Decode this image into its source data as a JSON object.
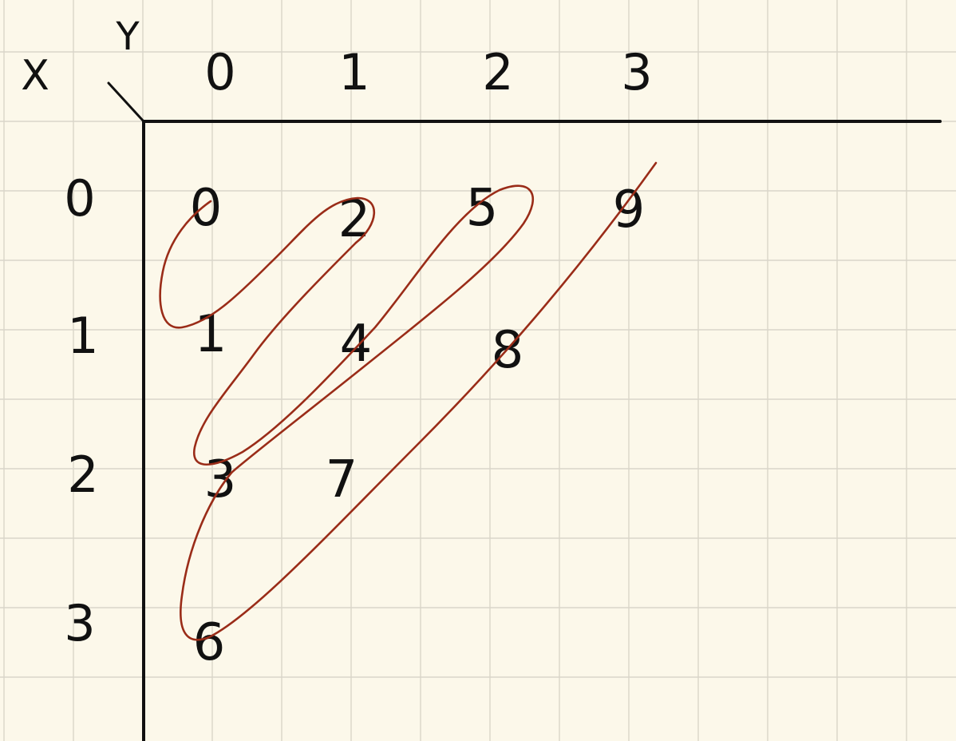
{
  "colors": {
    "paper": "#fcf8ea",
    "grid": "#d9d6c9",
    "ink": "#111111",
    "trace": "#9a2c18"
  },
  "header": {
    "x_label": "X",
    "y_label": "Y"
  },
  "columns": [
    "0",
    "1",
    "2",
    "3"
  ],
  "rows": [
    "0",
    "1",
    "2",
    "3"
  ],
  "cells": [
    [
      "0",
      "2",
      "5",
      "9"
    ],
    [
      "1",
      "4",
      "8",
      ""
    ],
    [
      "3",
      "7",
      "",
      ""
    ],
    [
      "6",
      "",
      "",
      ""
    ]
  ]
}
